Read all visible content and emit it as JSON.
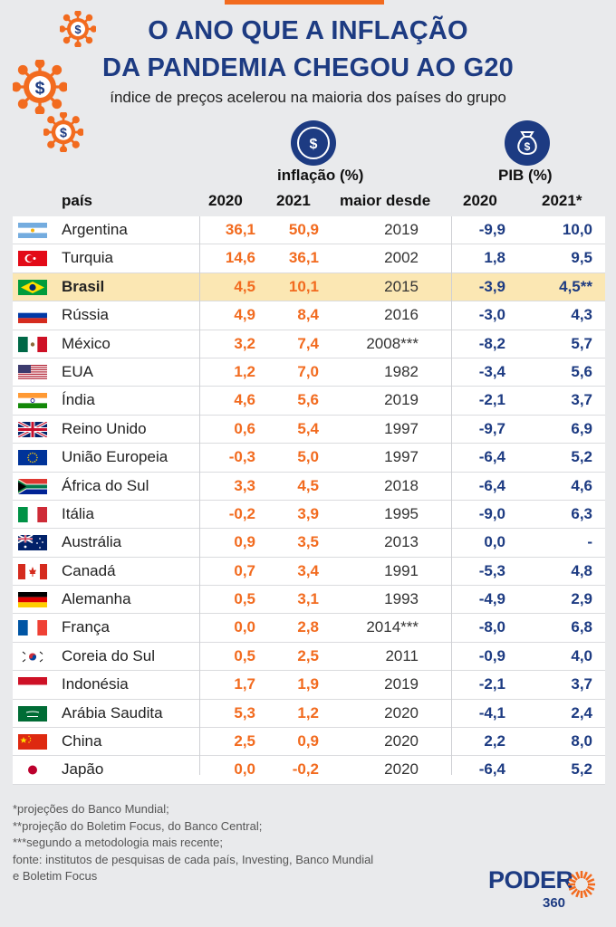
{
  "title_line1": "O ANO QUE A INFLAÇÃO",
  "title_line2": "DA PANDEMIA CHEGOU AO G20",
  "subtitle": "índice de preços acelerou na maioria dos países do grupo",
  "header": {
    "inflation_group": "inflação (%)",
    "gdp_group": "PIB (%)",
    "country": "país",
    "inf_2020": "2020",
    "inf_2021": "2021",
    "highest_since": "maior desde",
    "gdp_2020": "2020",
    "gdp_2021": "2021*"
  },
  "rows": [
    {
      "country": "Argentina",
      "flag": "argentina",
      "inf2020": "36,1",
      "inf2021": "50,9",
      "since": "2019",
      "gdp2020": "-9,9",
      "gdp2021": "10,0"
    },
    {
      "country": "Turquia",
      "flag": "turkey",
      "inf2020": "14,6",
      "inf2021": "36,1",
      "since": "2002",
      "gdp2020": "1,8",
      "gdp2021": "9,5"
    },
    {
      "country": "Brasil",
      "flag": "brazil",
      "inf2020": "4,5",
      "inf2021": "10,1",
      "since": "2015",
      "gdp2020": "-3,9",
      "gdp2021": "4,5**",
      "highlight": true
    },
    {
      "country": "Rússia",
      "flag": "russia",
      "inf2020": "4,9",
      "inf2021": "8,4",
      "since": "2016",
      "gdp2020": "-3,0",
      "gdp2021": "4,3"
    },
    {
      "country": "México",
      "flag": "mexico",
      "inf2020": "3,2",
      "inf2021": "7,4",
      "since": "2008***",
      "gdp2020": "-8,2",
      "gdp2021": "5,7"
    },
    {
      "country": "EUA",
      "flag": "usa",
      "inf2020": "1,2",
      "inf2021": "7,0",
      "since": "1982",
      "gdp2020": "-3,4",
      "gdp2021": "5,6"
    },
    {
      "country": "Índia",
      "flag": "india",
      "inf2020": "4,6",
      "inf2021": "5,6",
      "since": "2019",
      "gdp2020": "-2,1",
      "gdp2021": "3,7"
    },
    {
      "country": "Reino Unido",
      "flag": "uk",
      "inf2020": "0,6",
      "inf2021": "5,4",
      "since": "1997",
      "gdp2020": "-9,7",
      "gdp2021": "6,9"
    },
    {
      "country": "União Europeia",
      "flag": "eu",
      "inf2020": "-0,3",
      "inf2021": "5,0",
      "since": "1997",
      "gdp2020": "-6,4",
      "gdp2021": "5,2"
    },
    {
      "country": "África do Sul",
      "flag": "south-africa",
      "inf2020": "3,3",
      "inf2021": "4,5",
      "since": "2018",
      "gdp2020": "-6,4",
      "gdp2021": "4,6"
    },
    {
      "country": "Itália",
      "flag": "italy",
      "inf2020": "-0,2",
      "inf2021": "3,9",
      "since": "1995",
      "gdp2020": "-9,0",
      "gdp2021": "6,3"
    },
    {
      "country": "Austrália",
      "flag": "australia",
      "inf2020": "0,9",
      "inf2021": "3,5",
      "since": "2013",
      "gdp2020": "0,0",
      "gdp2021": "-"
    },
    {
      "country": "Canadá",
      "flag": "canada",
      "inf2020": "0,7",
      "inf2021": "3,4",
      "since": "1991",
      "gdp2020": "-5,3",
      "gdp2021": "4,8"
    },
    {
      "country": "Alemanha",
      "flag": "germany",
      "inf2020": "0,5",
      "inf2021": "3,1",
      "since": "1993",
      "gdp2020": "-4,9",
      "gdp2021": "2,9"
    },
    {
      "country": "França",
      "flag": "france",
      "inf2020": "0,0",
      "inf2021": "2,8",
      "since": "2014***",
      "gdp2020": "-8,0",
      "gdp2021": "6,8"
    },
    {
      "country": "Coreia do Sul",
      "flag": "south-korea",
      "inf2020": "0,5",
      "inf2021": "2,5",
      "since": "2011",
      "gdp2020": "-0,9",
      "gdp2021": "4,0"
    },
    {
      "country": "Indonésia",
      "flag": "indonesia",
      "inf2020": "1,7",
      "inf2021": "1,9",
      "since": "2019",
      "gdp2020": "-2,1",
      "gdp2021": "3,7"
    },
    {
      "country": "Arábia Saudita",
      "flag": "saudi-arabia",
      "inf2020": "5,3",
      "inf2021": "1,2",
      "since": "2020",
      "gdp2020": "-4,1",
      "gdp2021": "2,4"
    },
    {
      "country": "China",
      "flag": "china",
      "inf2020": "2,5",
      "inf2021": "0,9",
      "since": "2020",
      "gdp2020": "2,2",
      "gdp2021": "8,0"
    },
    {
      "country": "Japão",
      "flag": "japan",
      "inf2020": "0,0",
      "inf2021": "-0,2",
      "since": "2020",
      "gdp2020": "-6,4",
      "gdp2021": "5,2"
    }
  ],
  "notes": [
    "*projeções do Banco Mundial;",
    "**projeção do Boletim Focus, do Banco Central;",
    "***segundo a metodologia mais recente;",
    "fonte: institutos de pesquisas de cada país, Investing, Banco Mundial",
    "e Boletim Focus"
  ],
  "logo": {
    "main": "PODER",
    "sub": "360"
  },
  "colors": {
    "navy": "#1d3b82",
    "orange": "#f26b1f",
    "highlight": "#fbe7b3"
  }
}
